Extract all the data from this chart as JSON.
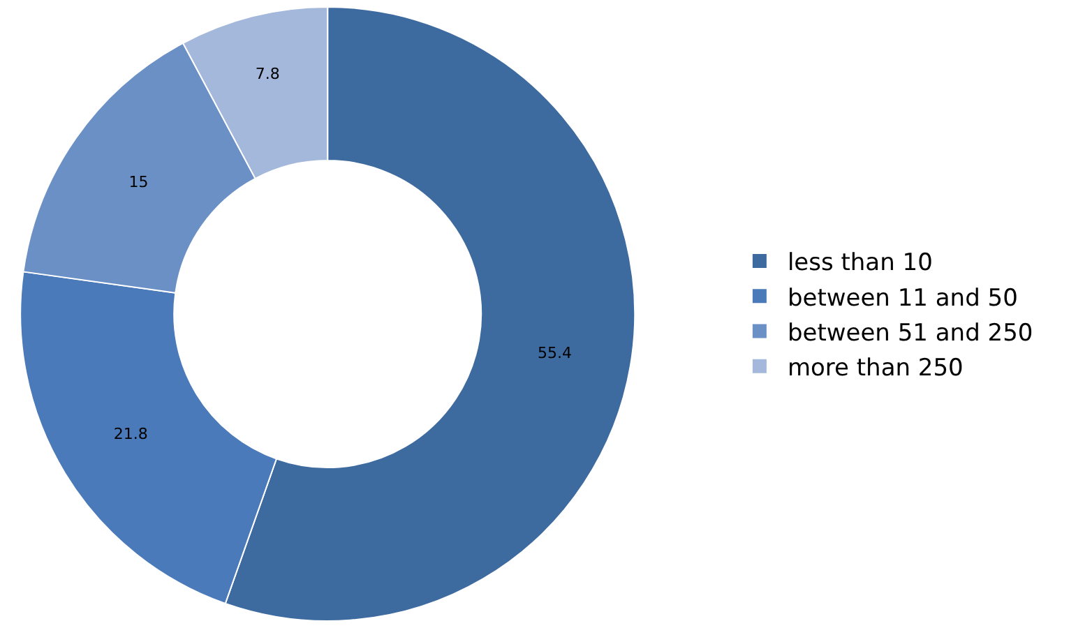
{
  "chart_data": {
    "type": "donut",
    "categories": [
      "less than 10",
      "between 11 and 50",
      "between 51 and 250",
      "more than 250"
    ],
    "values": [
      55.4,
      21.8,
      15,
      7.8
    ],
    "colors": [
      "#3d6a9f",
      "#4a7aba",
      "#6b90c6",
      "#a3b8da"
    ],
    "data_labels": true,
    "legend": "right"
  }
}
